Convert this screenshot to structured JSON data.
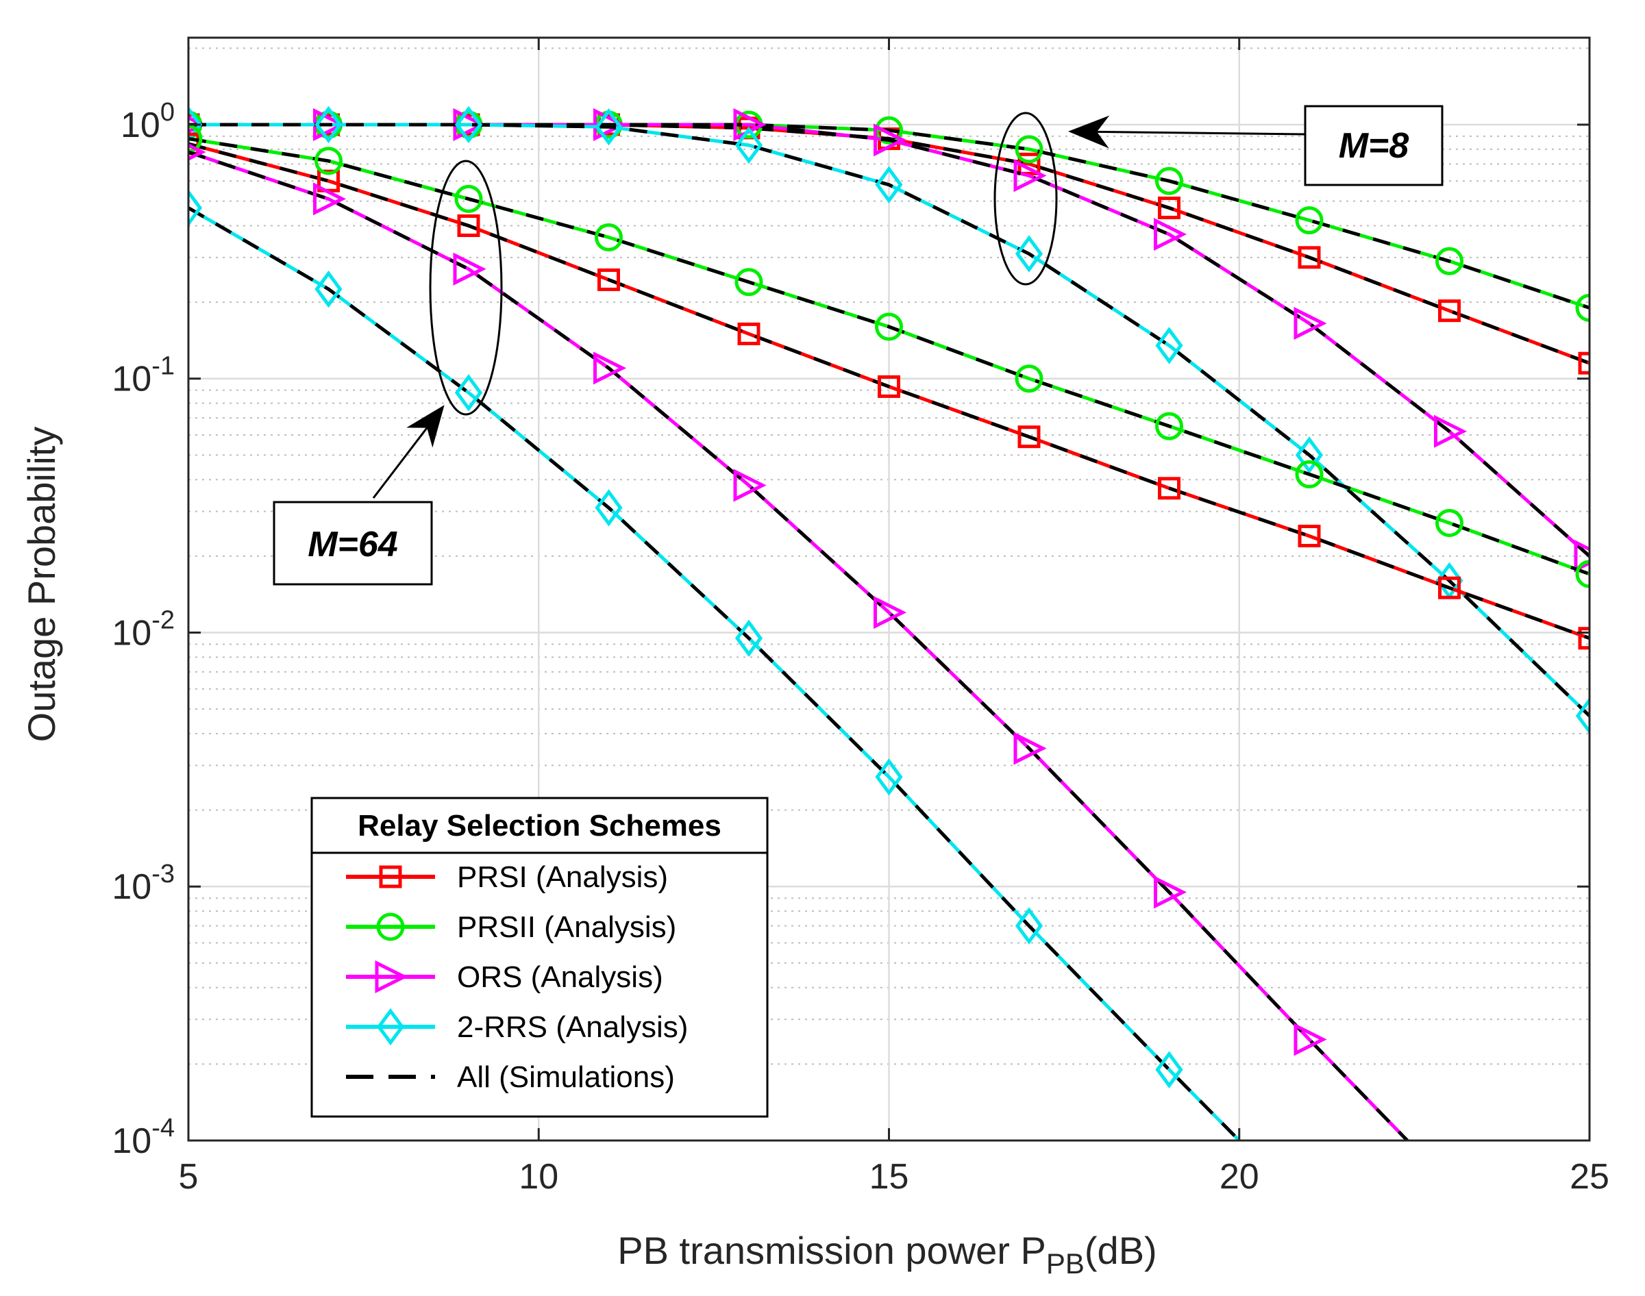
{
  "chart_data": {
    "type": "line",
    "title": "",
    "xlabel": {
      "main": "PB transmission power P",
      "sub": "PB",
      "tail": "(dB)"
    },
    "ylabel": "Outage Probability",
    "xlim": [
      5,
      25
    ],
    "ylim": [
      0.0001,
      2.2
    ],
    "yscale": "log",
    "grid": true,
    "xticks": [
      5,
      10,
      15,
      20,
      25
    ],
    "xtick_labels": [
      "5",
      "10",
      "15",
      "20",
      "25"
    ],
    "yticks": [
      {
        "value": 1,
        "base": "10",
        "exp": "0"
      },
      {
        "value": 0.1,
        "base": "10",
        "exp": "-1"
      },
      {
        "value": 0.01,
        "base": "10",
        "exp": "-2"
      },
      {
        "value": 0.001,
        "base": "10",
        "exp": "-3"
      },
      {
        "value": 0.0001,
        "base": "10",
        "exp": "-4"
      }
    ],
    "legend": {
      "title": "Relay Selection Schemes",
      "placement": "bottom-left",
      "entries": [
        {
          "label": "PRSI (Analysis)",
          "color": "#ff0000",
          "marker": "square"
        },
        {
          "label": "PRSII (Analysis)",
          "color": "#00ee00",
          "marker": "circle"
        },
        {
          "label": "ORS (Analysis)",
          "color": "#ff00ff",
          "marker": "triangle-right"
        },
        {
          "label": "2-RRS (Analysis)",
          "color": "#00e5ee",
          "marker": "diamond"
        },
        {
          "label": "All (Simulations)",
          "color": "#000000",
          "marker": "dashed"
        }
      ]
    },
    "series": [
      {
        "name": "PRSI (Analysis)",
        "group": "M=8",
        "color": "#ff0000",
        "marker": "square",
        "x": [
          5,
          7,
          9,
          11,
          13,
          15,
          17,
          19,
          21,
          23,
          25
        ],
        "y": [
          1.0,
          1.0,
          1.0,
          1.0,
          0.97,
          0.88,
          0.7,
          0.47,
          0.3,
          0.185,
          0.115
        ]
      },
      {
        "name": "PRSII (Analysis)",
        "group": "M=8",
        "color": "#00ee00",
        "marker": "circle",
        "x": [
          5,
          7,
          9,
          11,
          13,
          15,
          17,
          19,
          21,
          23,
          25
        ],
        "y": [
          1.0,
          1.0,
          1.0,
          1.0,
          1.0,
          0.95,
          0.8,
          0.6,
          0.42,
          0.29,
          0.19
        ]
      },
      {
        "name": "ORS (Analysis)",
        "group": "M=8",
        "color": "#ff00ff",
        "marker": "triangle-right",
        "x": [
          5,
          7,
          9,
          11,
          13,
          15,
          17,
          19,
          21,
          23,
          25
        ],
        "y": [
          1.0,
          1.0,
          1.0,
          1.0,
          1.0,
          0.87,
          0.63,
          0.37,
          0.165,
          0.062,
          0.02
        ]
      },
      {
        "name": "2-RRS (Analysis)",
        "group": "M=8",
        "color": "#00e5ee",
        "marker": "diamond",
        "x": [
          5,
          7,
          9,
          11,
          13,
          15,
          17,
          19,
          21,
          23,
          25
        ],
        "y": [
          1.0,
          1.0,
          1.0,
          0.98,
          0.83,
          0.58,
          0.31,
          0.135,
          0.05,
          0.016,
          0.0047
        ]
      },
      {
        "name": "PRSI (Analysis)",
        "group": "M=64",
        "color": "#ff0000",
        "marker": "square",
        "x": [
          5,
          7,
          9,
          11,
          13,
          15,
          17,
          19,
          21,
          23,
          25
        ],
        "y": [
          0.84,
          0.6,
          0.4,
          0.245,
          0.15,
          0.093,
          0.059,
          0.037,
          0.024,
          0.015,
          0.0095
        ]
      },
      {
        "name": "PRSII (Analysis)",
        "group": "M=64",
        "color": "#00ee00",
        "marker": "circle",
        "x": [
          5,
          7,
          9,
          11,
          13,
          15,
          17,
          19,
          21,
          23,
          25
        ],
        "y": [
          0.88,
          0.72,
          0.51,
          0.36,
          0.24,
          0.16,
          0.1,
          0.065,
          0.042,
          0.027,
          0.017
        ]
      },
      {
        "name": "ORS (Analysis)",
        "group": "M=64",
        "color": "#ff00ff",
        "marker": "triangle-right",
        "x": [
          5,
          7,
          9,
          11,
          13,
          15,
          17,
          19,
          21,
          22.4
        ],
        "y": [
          0.78,
          0.51,
          0.27,
          0.11,
          0.038,
          0.012,
          0.0035,
          0.00095,
          0.00025,
          0.0001
        ]
      },
      {
        "name": "2-RRS (Analysis)",
        "group": "M=64",
        "color": "#00e5ee",
        "marker": "diamond",
        "x": [
          5,
          7,
          9,
          11,
          13,
          15,
          17,
          19,
          20
        ],
        "y": [
          0.47,
          0.225,
          0.088,
          0.031,
          0.0095,
          0.0027,
          0.0007,
          0.00019,
          0.0001
        ]
      }
    ],
    "annotations": [
      {
        "text": "M=8",
        "points_to": {
          "x": 17,
          "y": 0.75
        }
      },
      {
        "text": "M=64",
        "points_to": {
          "x": 9,
          "y": 0.085
        }
      }
    ]
  }
}
